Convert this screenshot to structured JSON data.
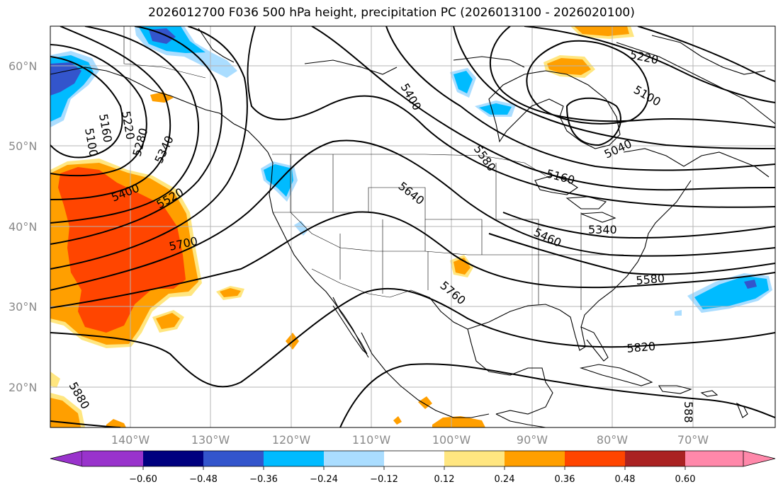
{
  "title": "2026012700 F036 500 hPa height, precipitation PC (2026013100 - 2026020100)",
  "map": {
    "lat_labels": [
      "60°N",
      "50°N",
      "40°N",
      "30°N",
      "20°N"
    ],
    "lon_labels": [
      "140°W",
      "130°W",
      "120°W",
      "110°W",
      "100°W",
      "90°W",
      "80°W",
      "70°W"
    ],
    "contour_labels": [
      "5100",
      "5160",
      "5220",
      "5280",
      "5340",
      "5400",
      "5520",
      "5700",
      "5880",
      "5400",
      "5580",
      "5640",
      "5760",
      "5220",
      "5100",
      "5040",
      "5160",
      "5460",
      "5340",
      "5580",
      "5820",
      "588"
    ]
  },
  "colorbar": {
    "tick_labels": [
      "−0.60",
      "−0.48",
      "−0.36",
      "−0.24",
      "−0.12",
      "0.12",
      "0.24",
      "0.36",
      "0.48",
      "0.60"
    ],
    "colors": [
      "#9933cc",
      "#00007f",
      "#3355cc",
      "#00bbff",
      "#aaddff",
      "#ffffff",
      "#ffe680",
      "#ff9f00",
      "#ff4500",
      "#aa2222",
      "#ff88aa"
    ]
  }
}
